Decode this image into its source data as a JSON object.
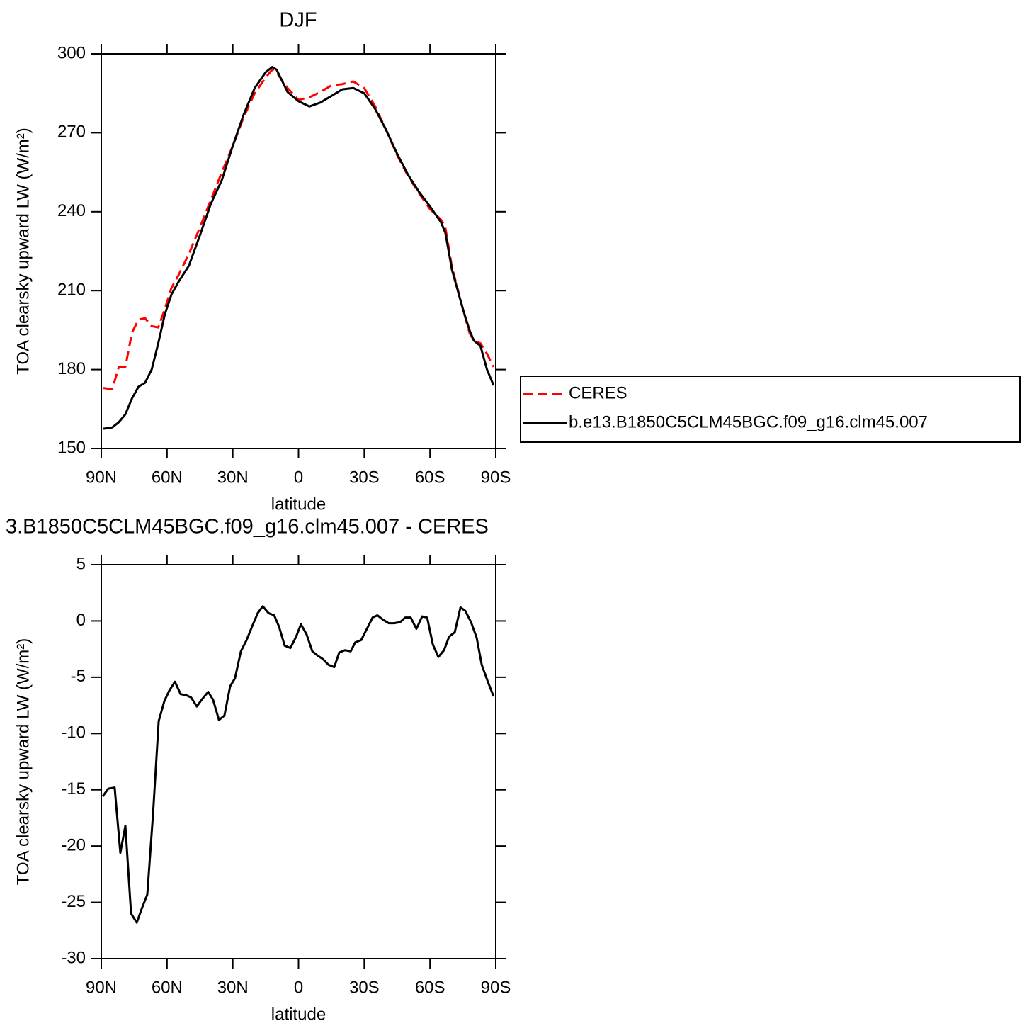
{
  "chart_data": [
    {
      "type": "line",
      "title": "DJF",
      "x_label": "latitude",
      "y_label": "TOA clearsky upward LW (W/m²)",
      "x": [
        89,
        85,
        82,
        79,
        76,
        73,
        70,
        67,
        64,
        61,
        58,
        55,
        50,
        45,
        40,
        35,
        30,
        25,
        20,
        15,
        12,
        10,
        5,
        0,
        -5,
        -10,
        -15,
        -20,
        -25,
        -30,
        -35,
        -40,
        -45,
        -50,
        -55,
        -60,
        -65,
        -67,
        -70,
        -75,
        -78,
        -80,
        -83,
        -86,
        -89
      ],
      "series": [
        {
          "name": "CERES",
          "color": "#ff0000",
          "dash": "dashed",
          "values": [
            173,
            172.5,
            181,
            181,
            194,
            199,
            199.5,
            196.5,
            196,
            203,
            211,
            215.5,
            224,
            234,
            244.5,
            255,
            265,
            276,
            285,
            291,
            294,
            293,
            287,
            282.5,
            283.5,
            285.5,
            288,
            288.5,
            289.5,
            287,
            280,
            271,
            261.5,
            253.5,
            247,
            241,
            237,
            234,
            219,
            203,
            194,
            191,
            190,
            186,
            181
          ]
        },
        {
          "name": "b.e13.B1850C5CLM45BGC.f09_g16.clm45.007",
          "color": "#000000",
          "dash": "solid",
          "values": [
            157.5,
            158,
            160,
            163,
            169,
            173.5,
            175,
            180,
            190,
            201,
            208.5,
            213,
            219.5,
            231,
            243,
            252,
            265,
            277,
            287,
            293,
            295,
            294,
            285.5,
            282,
            280,
            281.5,
            284,
            286.5,
            287,
            285,
            279,
            271,
            262,
            254,
            247.5,
            242,
            236,
            232,
            218,
            203,
            195,
            191,
            189,
            180,
            174
          ]
        }
      ],
      "xlim": [
        90,
        -90
      ],
      "xticks": [
        {
          "value": 90,
          "label": "90N"
        },
        {
          "value": 60,
          "label": "60N"
        },
        {
          "value": 30,
          "label": "30N"
        },
        0,
        {
          "value": -30,
          "label": "30S"
        },
        {
          "value": -60,
          "label": "60S"
        },
        {
          "value": -90,
          "label": "90S"
        }
      ],
      "ylim": [
        150,
        300
      ],
      "yticks": [
        150,
        180,
        210,
        240,
        270,
        300
      ],
      "legend": "right"
    },
    {
      "type": "line",
      "title": "3.B1850C5CLM45BGC.f09_g16.clm45.007 - CERES",
      "x_label": "latitude",
      "y_label": "TOA clearsky upward LW (W/m²)",
      "x": [
        89.4,
        86.8,
        83.9,
        81.3,
        79,
        76.4,
        73.8,
        71.6,
        69,
        66.4,
        63.8,
        61.2,
        59,
        56.4,
        53.8,
        51.2,
        49,
        46.4,
        43.8,
        41.2,
        39,
        36.3,
        33.8,
        31.2,
        29,
        26.3,
        23.7,
        21.2,
        18.6,
        16.3,
        13.7,
        11.1,
        8.9,
        6.3,
        3.7,
        1.1,
        -1.1,
        -3.7,
        -6.3,
        -8.9,
        -11.2,
        -13.7,
        -16.3,
        -18.6,
        -21.2,
        -23.8,
        -25.9,
        -28.6,
        -31.2,
        -33.8,
        -36,
        -38.6,
        -41.2,
        -43.7,
        -46.4,
        -48.7,
        -51.2,
        -53.8,
        -56.4,
        -58.7,
        -61.3,
        -63.8,
        -66.4,
        -68.7,
        -71.3,
        -73.9,
        -76.1,
        -78.7,
        -81.3,
        -83.6,
        -86.2,
        -89
      ],
      "values": [
        -15.6,
        -14.9,
        -14.8,
        -20.6,
        -18.2,
        -26,
        -26.8,
        -25.6,
        -24.3,
        -17.2,
        -8.9,
        -7.1,
        -6.2,
        -5.4,
        -6.5,
        -6.6,
        -6.8,
        -7.6,
        -6.9,
        -6.3,
        -7,
        -8.8,
        -8.4,
        -5.8,
        -5.1,
        -2.7,
        -1.7,
        -0.5,
        0.7,
        1.3,
        0.7,
        0.5,
        -0.5,
        -2.2,
        -2.4,
        -1.4,
        -0.3,
        -1.2,
        -2.7,
        -3.1,
        -3.4,
        -3.9,
        -4.1,
        -2.8,
        -2.6,
        -2.7,
        -1.9,
        -1.7,
        -0.7,
        0.3,
        0.5,
        0.1,
        -0.2,
        -0.2,
        -0.1,
        0.3,
        0.3,
        -0.7,
        0.4,
        0.3,
        -2.1,
        -3.2,
        -2.6,
        -1.4,
        -1,
        1.2,
        0.9,
        -0.1,
        -1.5,
        -3.9,
        -5.3,
        -6.7
      ],
      "color": "#000000",
      "xlim": [
        90,
        -90
      ],
      "xticks": [
        {
          "value": 90,
          "label": "90N"
        },
        {
          "value": 60,
          "label": "60N"
        },
        {
          "value": 30,
          "label": "30N"
        },
        0,
        {
          "value": -30,
          "label": "30S"
        },
        {
          "value": -60,
          "label": "60S"
        },
        {
          "value": -90,
          "label": "90S"
        }
      ],
      "ylim": [
        -30,
        5
      ],
      "yticks": [
        -30,
        -25,
        -20,
        -15,
        -10,
        -5,
        0,
        5
      ]
    }
  ]
}
